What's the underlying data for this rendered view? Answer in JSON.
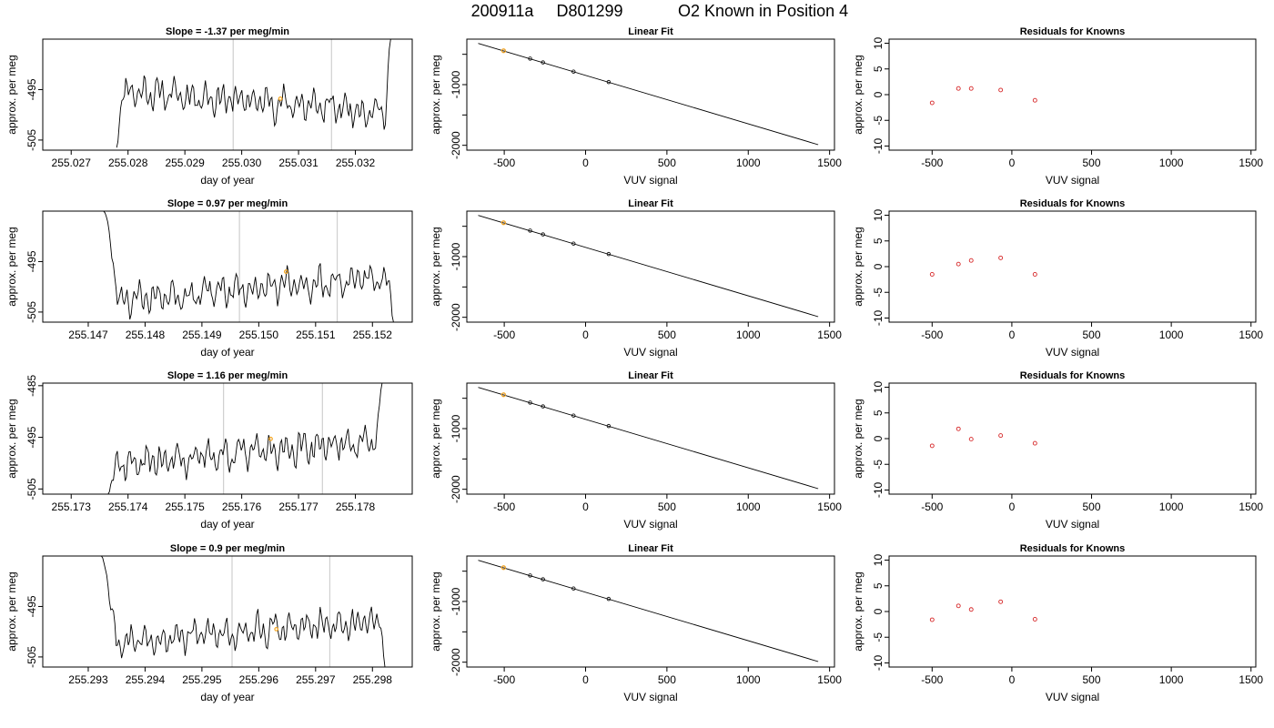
{
  "header": {
    "run": "200911a",
    "tank": "D801299",
    "description": "O2 Known in Position  4"
  },
  "chart_data": [
    {
      "type": "line",
      "row": 1,
      "col": 1,
      "title": "Slope =  -1.37  per meg/min",
      "xlabel": "day of year",
      "ylabel": "approx. per meg",
      "xlim": [
        255.0265,
        255.033
      ],
      "ylim": [
        -507,
        -485
      ],
      "xticks": [
        255.027,
        255.028,
        255.029,
        255.03,
        255.031,
        255.032
      ],
      "xticklabels": [
        "255.027",
        "255.028",
        "255.029",
        "255.030",
        "255.031",
        "255.032"
      ],
      "yticks": [
        -495,
        -505
      ],
      "yticklabels": [
        "-495",
        "-505"
      ],
      "vlines": [
        255.02985,
        255.03158
      ],
      "trace_start": 255.0278,
      "trace_end": 255.03262,
      "trace_level": -497.3,
      "trace_slope": -0.9,
      "trace_start_y": -506.5,
      "trace_end_y": -485,
      "start_ramp": 0.0001,
      "end_ramp": 0.0001,
      "seed": 11,
      "marker": {
        "x": 255.03068,
        "y": -496.8,
        "color": "#f5a623"
      }
    },
    {
      "type": "scatter",
      "row": 1,
      "col": 2,
      "title": "Linear Fit",
      "xlabel": "VUV signal",
      "ylabel": "approx. per meg",
      "xlim": [
        -730,
        1530
      ],
      "ylim": [
        -2080,
        -250
      ],
      "xticks": [
        -500,
        0,
        500,
        1000,
        1500
      ],
      "xticklabels": [
        "-500",
        "0",
        "500",
        "1000",
        "1500"
      ],
      "yticks": [
        -1000,
        -2000
      ],
      "yticklabels": [
        "-1000",
        "-2000"
      ],
      "yminor": [
        -500,
        -1500
      ],
      "fit_line": {
        "x": [
          -660,
          1430
        ],
        "y": [
          -320,
          -1990
        ]
      },
      "points": {
        "x": [
          -504,
          -341,
          -262,
          -74,
          142
        ],
        "y": [
          -441,
          -571,
          -634,
          -785,
          -957
        ]
      },
      "highlight": {
        "x": -504,
        "y": -441,
        "color": "#f5a623"
      }
    },
    {
      "type": "scatter",
      "row": 1,
      "col": 3,
      "title": "Residuals for Knowns",
      "xlabel": "VUV signal",
      "ylabel": "approx. per meg",
      "xlim": [
        -770,
        1530
      ],
      "ylim": [
        -10.8,
        10.8
      ],
      "xticks": [
        -500,
        0,
        500,
        1000,
        1500
      ],
      "xticklabels": [
        "-500",
        "0",
        "500",
        "1000",
        "1500"
      ],
      "yticks": [
        10,
        5,
        0,
        -5,
        -10
      ],
      "yticklabels": [
        "10",
        "5",
        "0",
        "-5",
        "-10"
      ],
      "points": {
        "x": [
          -500,
          -335,
          -255,
          -70,
          145
        ],
        "y": [
          -1.6,
          1.2,
          1.2,
          0.9,
          -1.1
        ]
      },
      "color": "#d62728"
    },
    {
      "type": "line",
      "row": 2,
      "col": 1,
      "title": "Slope =  0.97  per meg/min",
      "xlabel": "day of year",
      "ylabel": "approx. per meg",
      "xlim": [
        255.1462,
        255.1527
      ],
      "ylim": [
        -507,
        -485
      ],
      "xticks": [
        255.147,
        255.148,
        255.149,
        255.15,
        255.151,
        255.152
      ],
      "xticklabels": [
        "255.147",
        "255.148",
        "255.149",
        "255.150",
        "255.151",
        "255.152"
      ],
      "yticks": [
        -495,
        -505
      ],
      "yticklabels": [
        "-495",
        "-505"
      ],
      "vlines": [
        255.14966,
        255.15138
      ],
      "trace_start": 255.14727,
      "trace_end": 255.15237,
      "trace_level": -500.5,
      "trace_slope": 0.9,
      "trace_start_y": -485,
      "trace_end_y": -507,
      "start_ramp": 0.0003,
      "end_ramp": 8e-05,
      "seed": 23,
      "marker": {
        "x": 255.15048,
        "y": -497.0,
        "color": "#f5a623"
      }
    },
    {
      "type": "scatter",
      "row": 2,
      "col": 2,
      "title": "Linear Fit",
      "xlabel": "VUV signal",
      "ylabel": "approx. per meg",
      "xlim": [
        -730,
        1530
      ],
      "ylim": [
        -2080,
        -250
      ],
      "xticks": [
        -500,
        0,
        500,
        1000,
        1500
      ],
      "xticklabels": [
        "-500",
        "0",
        "500",
        "1000",
        "1500"
      ],
      "yticks": [
        -1000,
        -2000
      ],
      "yticklabels": [
        "-1000",
        "-2000"
      ],
      "yminor": [
        -500,
        -1500
      ],
      "fit_line": {
        "x": [
          -660,
          1430
        ],
        "y": [
          -320,
          -1990
        ]
      },
      "points": {
        "x": [
          -504,
          -341,
          -262,
          -74,
          142
        ],
        "y": [
          -441,
          -571,
          -634,
          -785,
          -957
        ]
      },
      "highlight": {
        "x": -504,
        "y": -441,
        "color": "#f5a623"
      }
    },
    {
      "type": "scatter",
      "row": 2,
      "col": 3,
      "title": "Residuals for Knowns",
      "xlabel": "VUV signal",
      "ylabel": "approx. per meg",
      "xlim": [
        -770,
        1530
      ],
      "ylim": [
        -10.8,
        10.8
      ],
      "xticks": [
        -500,
        0,
        500,
        1000,
        1500
      ],
      "xticklabels": [
        "-500",
        "0",
        "500",
        "1000",
        "1500"
      ],
      "yticks": [
        10,
        5,
        0,
        -5,
        -10
      ],
      "yticklabels": [
        "10",
        "5",
        "0",
        "-5",
        "-10"
      ],
      "points": {
        "x": [
          -500,
          -335,
          -255,
          -70,
          145
        ],
        "y": [
          -1.5,
          0.5,
          1.2,
          1.7,
          -1.5
        ]
      },
      "color": "#d62728"
    },
    {
      "type": "line",
      "row": 3,
      "col": 1,
      "title": "Slope =  1.16  per meg/min",
      "xlabel": "day of year",
      "ylabel": "approx. per meg",
      "xlim": [
        255.1725,
        255.179
      ],
      "ylim": [
        -506,
        -484.5
      ],
      "xticks": [
        255.173,
        255.174,
        255.175,
        255.176,
        255.177,
        255.178
      ],
      "xticklabels": [
        "255.173",
        "255.174",
        "255.175",
        "255.176",
        "255.177",
        "255.178"
      ],
      "yticks": [
        -485,
        -495,
        -505
      ],
      "yticklabels": [
        "-485",
        "-495",
        "-505"
      ],
      "vlines": [
        255.17568,
        255.17742
      ],
      "trace_start": 255.17365,
      "trace_end": 255.17847,
      "trace_level": -498.0,
      "trace_slope": 1.0,
      "trace_start_y": -506,
      "trace_end_y": -484.5,
      "start_ramp": 0.00012,
      "end_ramp": 0.0001,
      "seed": 37,
      "marker": {
        "x": 255.17651,
        "y": -495.3,
        "color": "#f5a623"
      }
    },
    {
      "type": "scatter",
      "row": 3,
      "col": 2,
      "title": "Linear Fit",
      "xlabel": "VUV signal",
      "ylabel": "approx. per meg",
      "xlim": [
        -730,
        1530
      ],
      "ylim": [
        -2080,
        -250
      ],
      "xticks": [
        -500,
        0,
        500,
        1000,
        1500
      ],
      "xticklabels": [
        "-500",
        "0",
        "500",
        "1000",
        "1500"
      ],
      "yticks": [
        -1000,
        -2000
      ],
      "yticklabels": [
        "-1000",
        "-2000"
      ],
      "yminor": [
        -500,
        -1500
      ],
      "fit_line": {
        "x": [
          -660,
          1430
        ],
        "y": [
          -320,
          -1990
        ]
      },
      "points": {
        "x": [
          -504,
          -341,
          -262,
          -74,
          142
        ],
        "y": [
          -441,
          -571,
          -634,
          -785,
          -957
        ]
      },
      "highlight": {
        "x": -504,
        "y": -441,
        "color": "#f5a623"
      }
    },
    {
      "type": "scatter",
      "row": 3,
      "col": 3,
      "title": "Residuals for Knowns",
      "xlabel": "VUV signal",
      "ylabel": "approx. per meg",
      "xlim": [
        -770,
        1530
      ],
      "ylim": [
        -10.8,
        10.8
      ],
      "xticks": [
        -500,
        0,
        500,
        1000,
        1500
      ],
      "xticklabels": [
        "-500",
        "0",
        "500",
        "1000",
        "1500"
      ],
      "yticks": [
        10,
        5,
        0,
        -5,
        -10
      ],
      "yticklabels": [
        "10",
        "5",
        "0",
        "-5",
        "-10"
      ],
      "points": {
        "x": [
          -500,
          -335,
          -255,
          -70,
          145
        ],
        "y": [
          -1.4,
          1.9,
          -0.1,
          0.6,
          -0.9
        ]
      },
      "color": "#d62728"
    },
    {
      "type": "line",
      "row": 4,
      "col": 1,
      "title": "Slope =  0.9  per meg/min",
      "xlabel": "day of year",
      "ylabel": "approx. per meg",
      "xlim": [
        255.2922,
        255.2987
      ],
      "ylim": [
        -507,
        -485
      ],
      "xticks": [
        255.293,
        255.294,
        255.295,
        255.296,
        255.297,
        255.298
      ],
      "xticklabels": [
        "255.293",
        "255.294",
        "255.295",
        "255.296",
        "255.297",
        "255.298"
      ],
      "yticks": [
        -495,
        -505
      ],
      "yticklabels": [
        "-495",
        "-505"
      ],
      "vlines": [
        255.29553,
        255.29725
      ],
      "trace_start": 255.29323,
      "trace_end": 255.29822,
      "trace_level": -500.0,
      "trace_slope": 0.8,
      "trace_start_y": -485,
      "trace_end_y": -507,
      "start_ramp": 0.0003,
      "end_ramp": 8e-05,
      "seed": 53,
      "marker": {
        "x": 255.29631,
        "y": -499.5,
        "color": "#f5a623"
      }
    },
    {
      "type": "scatter",
      "row": 4,
      "col": 2,
      "title": "Linear Fit",
      "xlabel": "VUV signal",
      "ylabel": "approx. per meg",
      "xlim": [
        -730,
        1530
      ],
      "ylim": [
        -2080,
        -250
      ],
      "xticks": [
        -500,
        0,
        500,
        1000,
        1500
      ],
      "xticklabels": [
        "-500",
        "0",
        "500",
        "1000",
        "1500"
      ],
      "yticks": [
        -1000,
        -2000
      ],
      "yticklabels": [
        "-1000",
        "-2000"
      ],
      "yminor": [
        -500,
        -1500
      ],
      "fit_line": {
        "x": [
          -660,
          1430
        ],
        "y": [
          -320,
          -1990
        ]
      },
      "points": {
        "x": [
          -504,
          -341,
          -262,
          -74,
          142
        ],
        "y": [
          -441,
          -571,
          -634,
          -785,
          -957
        ]
      },
      "highlight": {
        "x": -504,
        "y": -441,
        "color": "#f5a623"
      }
    },
    {
      "type": "scatter",
      "row": 4,
      "col": 3,
      "title": "Residuals for Knowns",
      "xlabel": "VUV signal",
      "ylabel": "approx. per meg",
      "xlim": [
        -770,
        1530
      ],
      "ylim": [
        -10.8,
        10.8
      ],
      "xticks": [
        -500,
        0,
        500,
        1000,
        1500
      ],
      "xticklabels": [
        "-500",
        "0",
        "500",
        "1000",
        "1500"
      ],
      "yticks": [
        10,
        5,
        0,
        -5,
        -10
      ],
      "yticklabels": [
        "10",
        "5",
        "0",
        "-5",
        "-10"
      ],
      "points": {
        "x": [
          -500,
          -335,
          -255,
          -70,
          145
        ],
        "y": [
          -1.6,
          1.1,
          0.4,
          1.9,
          -1.5
        ]
      },
      "color": "#d62728"
    }
  ]
}
